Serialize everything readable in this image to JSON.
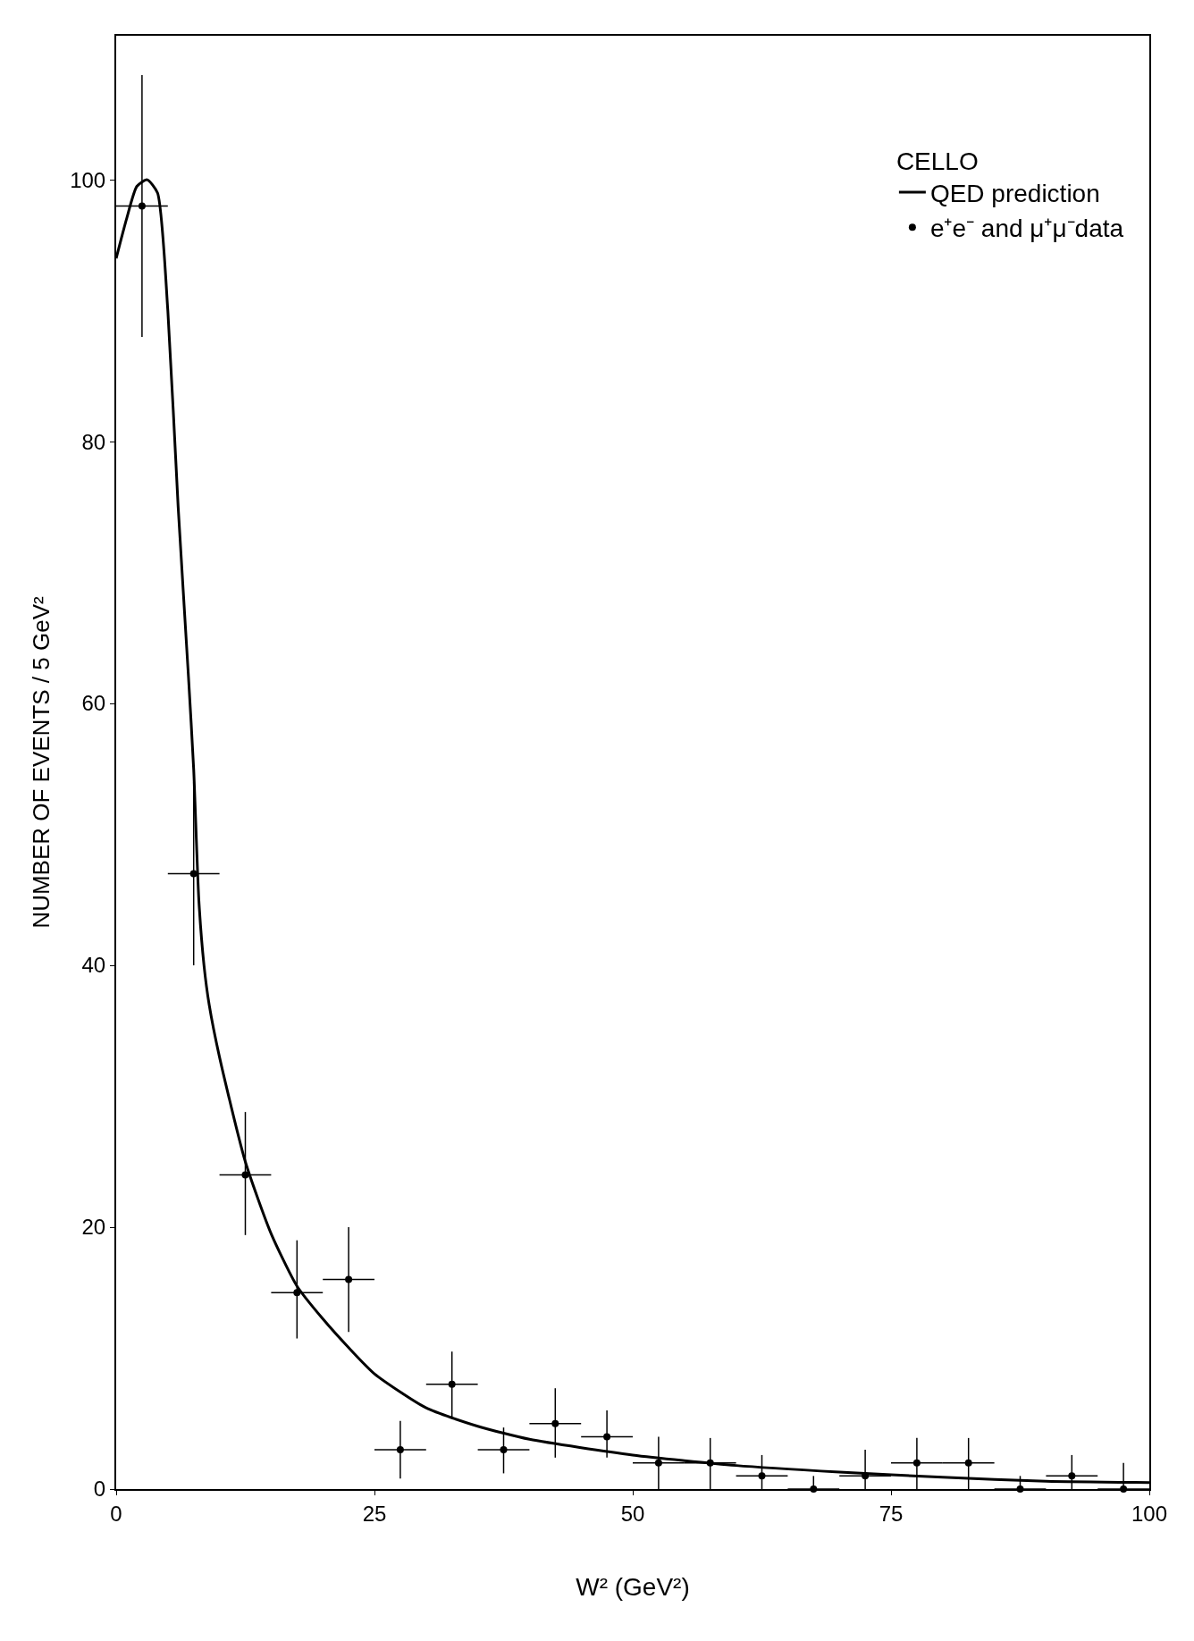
{
  "chart_data": {
    "type": "scatter",
    "xlabel": "W² (GeV²)",
    "ylabel": "NUMBER OF EVENTS / 5 GeV²",
    "legend_title": "CELLO",
    "xlim": [
      0,
      100
    ],
    "xticks": [
      0,
      25,
      50,
      75,
      100
    ],
    "ylim": [
      0,
      111
    ],
    "yticks": [
      0,
      20,
      40,
      60,
      80,
      100
    ],
    "legend": "top right",
    "series": [
      {
        "name": "QED prediction",
        "type": "line",
        "color": "#000000",
        "marker": "none",
        "line_style": "solid",
        "x": [
          0,
          1,
          2,
          3,
          4,
          5,
          6,
          7,
          7.5,
          8,
          8.5,
          9,
          10,
          12.5,
          15,
          17.5,
          20,
          22.5,
          25,
          30,
          35,
          40,
          50,
          60,
          70,
          80,
          90,
          100
        ],
        "values": [
          94,
          97,
          99.5,
          100,
          99,
          90,
          75,
          62,
          55,
          45,
          40,
          37,
          33,
          25,
          19.5,
          15.5,
          13,
          10.8,
          8.8,
          6.2,
          4.8,
          3.8,
          2.6,
          1.8,
          1.3,
          0.9,
          0.6,
          0.5
        ]
      },
      {
        "name": "e⁺e⁻ and μ⁺μ⁻data",
        "color": "#000000",
        "marker": "circle",
        "x": [
          2.5,
          7.5,
          12.5,
          17.5,
          22.5,
          27.5,
          32.5,
          37.5,
          42.5,
          47.5,
          52.5,
          57.5,
          62.5,
          67.5,
          72.5,
          77.5,
          82.5,
          87.5,
          92.5,
          97.5
        ],
        "values": [
          98,
          47,
          24,
          15,
          16,
          3,
          8,
          3,
          5,
          4,
          2,
          2,
          1,
          0,
          1,
          2,
          2,
          0,
          1,
          0
        ],
        "errors": [
          [
            88,
            108
          ],
          [
            40,
            54
          ],
          [
            19.4,
            28.8
          ],
          [
            11.5,
            19
          ],
          [
            12,
            20
          ],
          [
            0.8,
            5.2
          ],
          [
            5.5,
            10.5
          ],
          [
            1.2,
            4.7
          ],
          [
            2.4,
            7.7
          ],
          [
            2.4,
            6
          ],
          [
            0,
            4
          ],
          [
            0,
            3.9
          ],
          [
            0,
            2.6
          ],
          [
            0,
            1
          ],
          [
            0,
            3
          ],
          [
            0,
            3.9
          ],
          [
            0,
            3.9
          ],
          [
            0,
            1
          ],
          [
            0,
            2.6
          ],
          [
            0,
            2
          ]
        ],
        "xerrors": [
          2.5,
          2.5,
          2.5,
          2.5,
          2.5,
          2.5,
          2.5,
          2.5,
          2.5,
          2.5,
          2.5,
          2.5,
          2.5,
          2.5,
          2.5,
          2.5,
          2.5,
          2.5,
          2.5,
          2.5
        ]
      }
    ]
  }
}
